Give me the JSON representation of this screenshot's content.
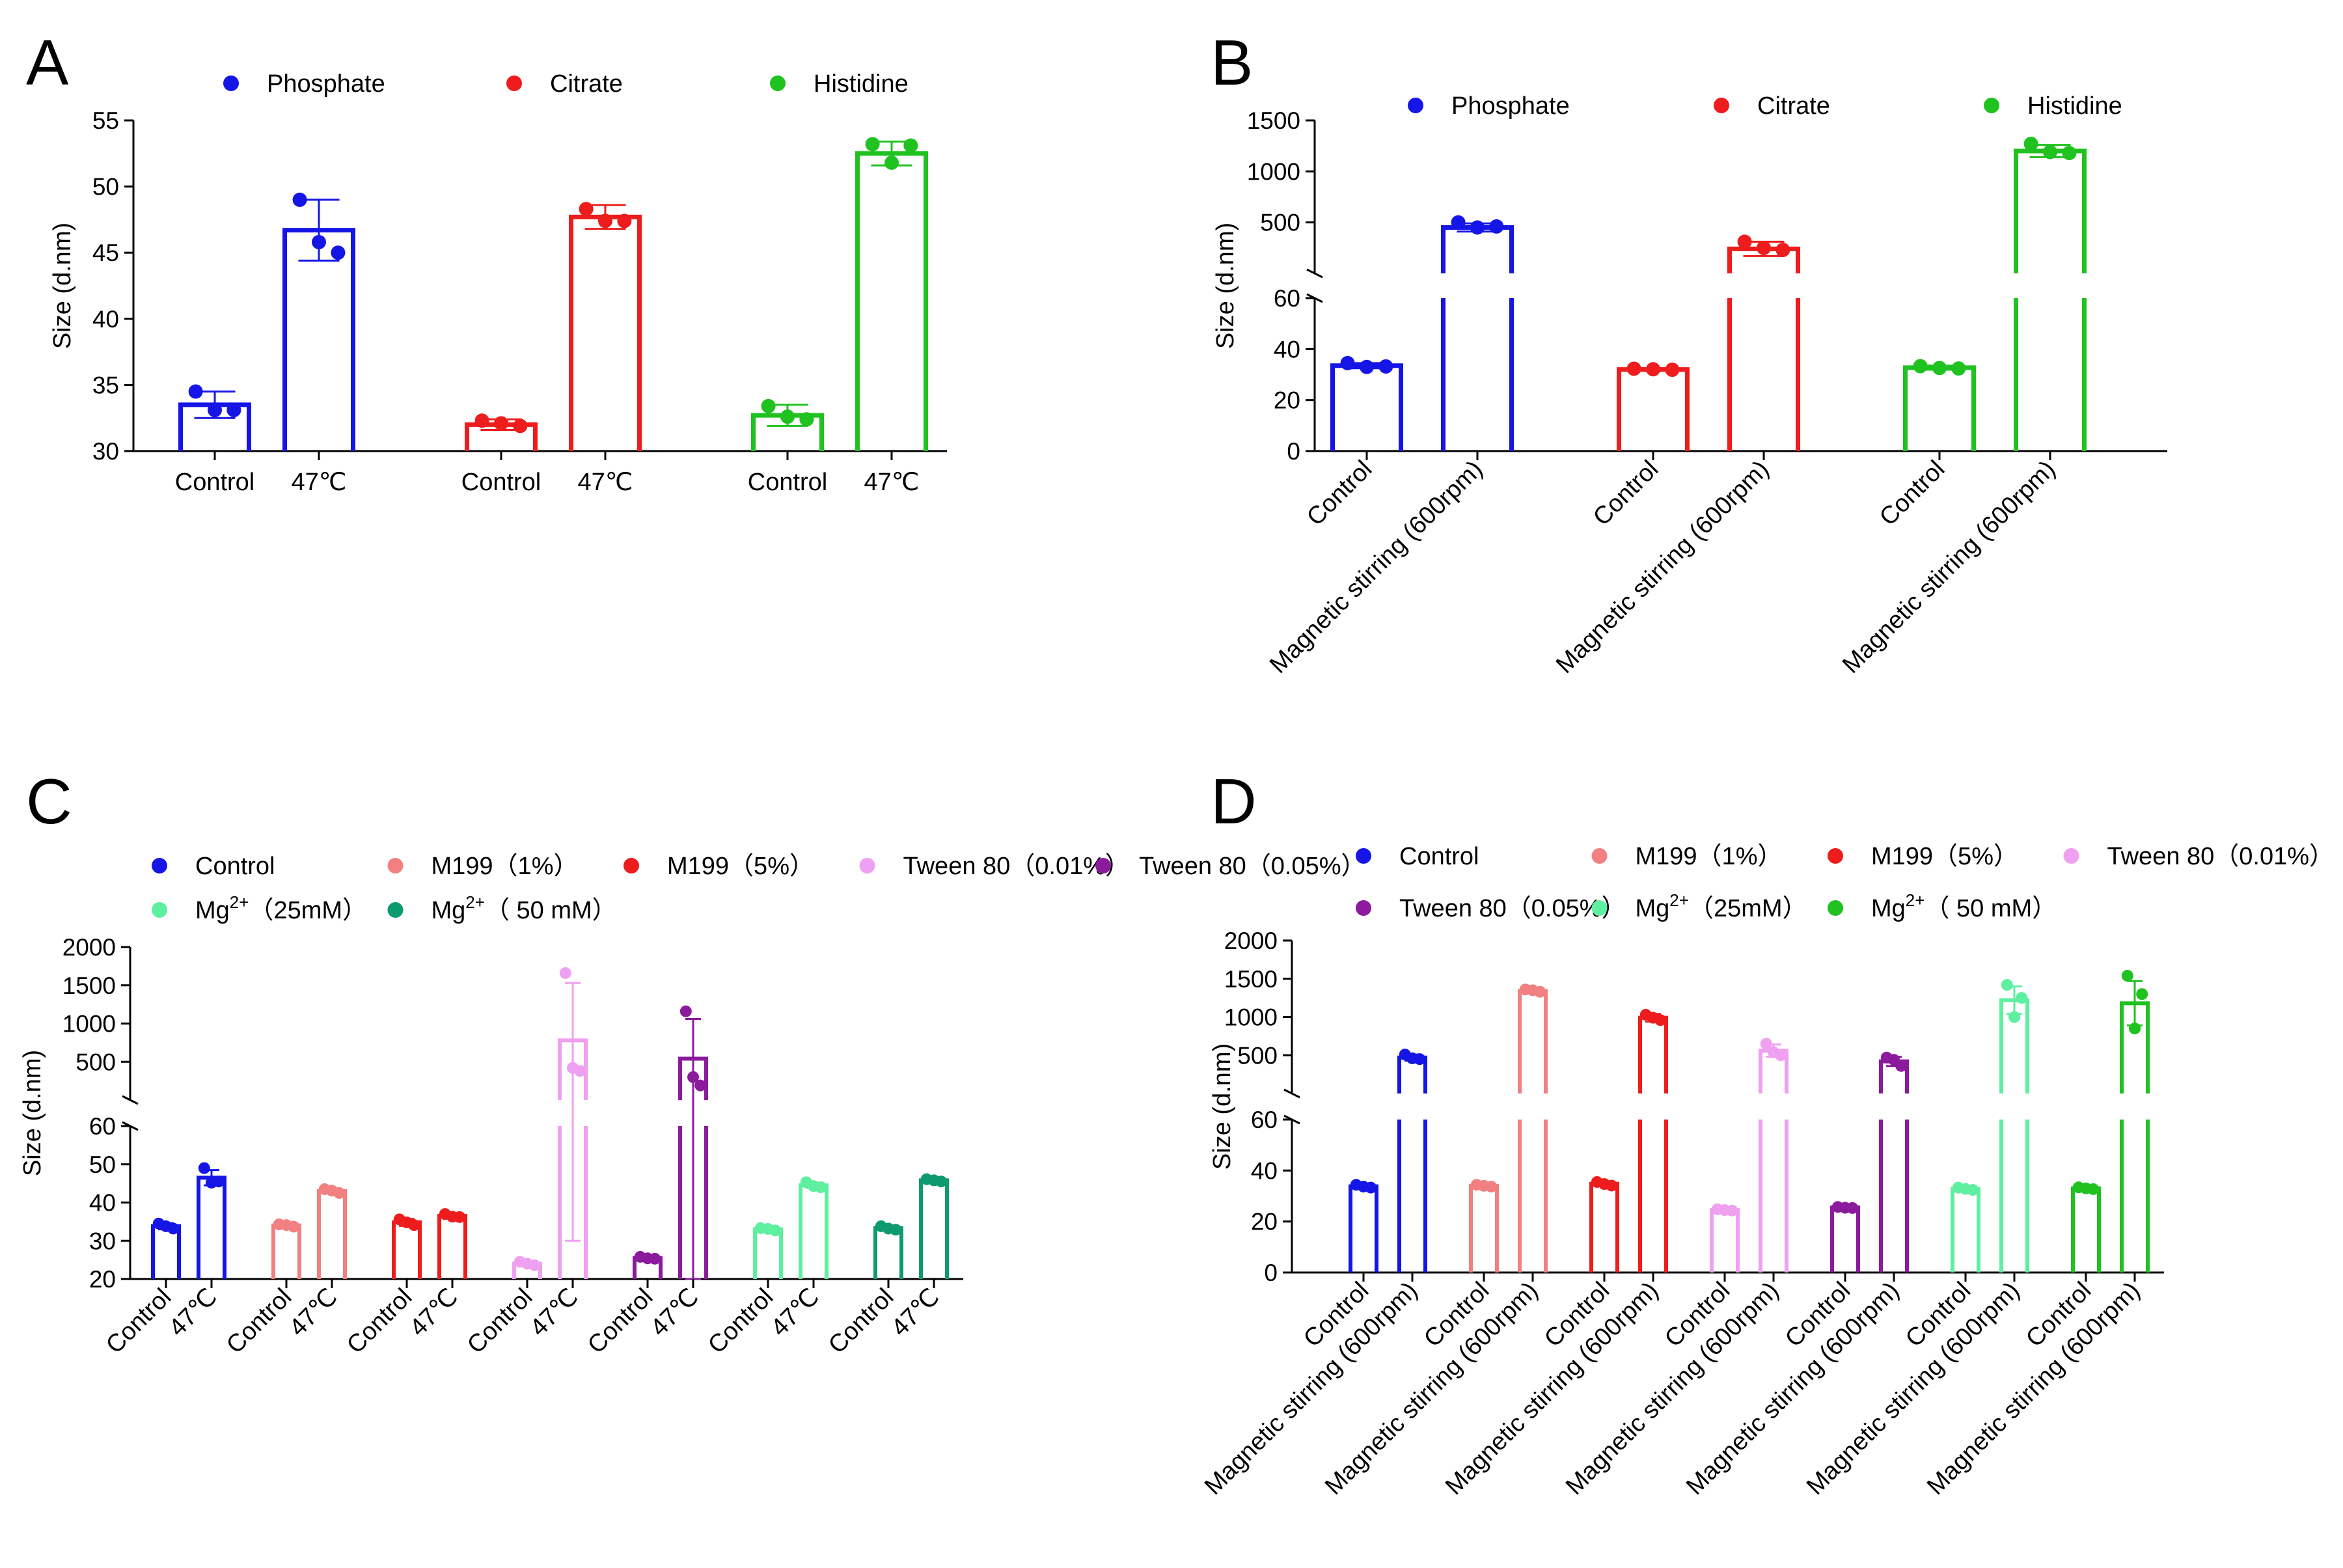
{
  "chart_data": [
    {
      "panel": "A",
      "type": "bar",
      "ylabel": "Size (d.nm)",
      "ylim": [
        30,
        55
      ],
      "yticks": [
        "30",
        "35",
        "40",
        "45",
        "50",
        "55"
      ],
      "legend": [
        {
          "name": "Phosphate",
          "color": "#1515e6"
        },
        {
          "name": "Citrate",
          "color": "#ee1c1c"
        },
        {
          "name": "Histidine",
          "color": "#1fc21f"
        }
      ],
      "categories": [
        "Control",
        "47℃",
        "Control",
        "47℃",
        "Control",
        "47℃"
      ],
      "series_colors": [
        "#1515e6",
        "#1515e6",
        "#ee1c1c",
        "#ee1c1c",
        "#1fc21f",
        "#1fc21f"
      ],
      "values": [
        33.5,
        46.7,
        32.0,
        47.7,
        32.7,
        52.5
      ],
      "errors": [
        1.0,
        2.3,
        0.4,
        0.9,
        0.8,
        0.9
      ],
      "points": [
        [
          34.5,
          33.1,
          33.1
        ],
        [
          49.0,
          45.0,
          45.8
        ],
        [
          32.3,
          31.9,
          32.1
        ],
        [
          48.3,
          47.4,
          47.4
        ],
        [
          33.4,
          32.4,
          32.6
        ],
        [
          53.2,
          53.1,
          51.8
        ]
      ]
    },
    {
      "panel": "B",
      "type": "bar",
      "ylabel": "Size (d.nm)",
      "broken_axis": true,
      "lower_ylim": [
        0,
        60
      ],
      "lower_yticks": [
        "0",
        "20",
        "40",
        "60"
      ],
      "upper_ylim": [
        0,
        1500
      ],
      "upper_yticks": [
        "500",
        "1000",
        "1500"
      ],
      "legend": [
        {
          "name": "Phosphate",
          "color": "#1515e6"
        },
        {
          "name": "Citrate",
          "color": "#ee1c1c"
        },
        {
          "name": "Histidine",
          "color": "#1fc21f"
        }
      ],
      "categories": [
        "Control",
        "Magnetic stirring (600rpm)",
        "Control",
        "Magnetic stirring (600rpm)",
        "Control",
        "Magnetic stirring (600rpm)"
      ],
      "series_colors": [
        "#1515e6",
        "#1515e6",
        "#ee1c1c",
        "#ee1c1c",
        "#1fc21f",
        "#1fc21f"
      ],
      "values": [
        33.5,
        450,
        32.0,
        240,
        32.7,
        1200
      ],
      "errors": [
        1.0,
        40,
        0.5,
        70,
        0.8,
        60
      ],
      "points": [
        [
          34.5,
          33.2,
          33.0
        ],
        [
          500,
          460,
          450
        ],
        [
          32.3,
          31.9,
          32.1
        ],
        [
          310,
          230,
          250
        ],
        [
          33.3,
          32.4,
          32.6
        ],
        [
          1270,
          1180,
          1190
        ]
      ]
    },
    {
      "panel": "C",
      "type": "bar",
      "ylabel": "Size (d.nm)",
      "broken_axis": true,
      "lower_ylim": [
        20,
        60
      ],
      "lower_yticks": [
        "20",
        "30",
        "40",
        "50",
        "60"
      ],
      "upper_ylim": [
        0,
        2000
      ],
      "upper_yticks": [
        "500",
        "1000",
        "1500",
        "2000"
      ],
      "legend": [
        {
          "name": "Control",
          "color": "#1515e6"
        },
        {
          "name": "M199（1%）",
          "color": "#f28080"
        },
        {
          "name": "M199（5%）",
          "color": "#ee1c1c"
        },
        {
          "name": "Tween 80（0.01%）",
          "color": "#f0a0f0"
        },
        {
          "name": "Tween 80（0.05%）",
          "color": "#8b1a9c"
        },
        {
          "name": "Mg",
          "sup": "2+",
          "rest": "（25mM）",
          "color": "#5ef0a0"
        },
        {
          "name": "Mg",
          "sup": "2+",
          "rest": "（ 50 mM）",
          "color": "#0d9a6e"
        }
      ],
      "categories": [
        "Control",
        "47℃",
        "Control",
        "47℃",
        "Control",
        "47℃",
        "Control",
        "47℃",
        "Control",
        "47℃",
        "Control",
        "47℃",
        "Control",
        "47℃"
      ],
      "series_colors": [
        "#1515e6",
        "#1515e6",
        "#f28080",
        "#f28080",
        "#ee1c1c",
        "#ee1c1c",
        "#f0a0f0",
        "#f0a0f0",
        "#8b1a9c",
        "#8b1a9c",
        "#5ef0a0",
        "#5ef0a0",
        "#0d9a6e",
        "#0d9a6e"
      ],
      "values": [
        33.8,
        46.5,
        34.0,
        43.0,
        34.8,
        36.5,
        24.0,
        780,
        25.5,
        540,
        33.0,
        44.5,
        33.3,
        45.8
      ],
      "errors": [
        0.8,
        2.0,
        0.5,
        0.6,
        0.9,
        0.6,
        0.6,
        750,
        0.4,
        520,
        0.5,
        0.7,
        0.5,
        0.4
      ],
      "points": [
        [
          34.5,
          33.2,
          33.8
        ],
        [
          49.0,
          45.5,
          45.2
        ],
        [
          34.3,
          33.7,
          34.1
        ],
        [
          43.5,
          42.5,
          43.1
        ],
        [
          35.6,
          34.1,
          34.8
        ],
        [
          37.0,
          36.2,
          36.3
        ],
        [
          24.5,
          23.6,
          24.0
        ],
        [
          1660,
          380,
          420
        ],
        [
          25.8,
          25.3,
          25.4
        ],
        [
          1160,
          190,
          300
        ],
        [
          33.3,
          32.7,
          33.1
        ],
        [
          45.3,
          44.0,
          44.3
        ],
        [
          33.8,
          32.9,
          33.2
        ],
        [
          46.1,
          45.5,
          45.8
        ]
      ]
    },
    {
      "panel": "D",
      "type": "bar",
      "ylabel": "Size (d.nm)",
      "broken_axis": true,
      "lower_ylim": [
        0,
        60
      ],
      "lower_yticks": [
        "0",
        "20",
        "40",
        "60"
      ],
      "upper_ylim": [
        0,
        2000
      ],
      "upper_yticks": [
        "500",
        "1000",
        "1500",
        "2000"
      ],
      "legend": [
        {
          "name": "Control",
          "color": "#1515e6"
        },
        {
          "name": "M199（1%）",
          "color": "#f28080"
        },
        {
          "name": "M199（5%）",
          "color": "#ee1c1c"
        },
        {
          "name": "Tween 80（0.01%）",
          "color": "#f0a0f0"
        },
        {
          "name": "Tween 80（0.05%）",
          "color": "#8b1a9c"
        },
        {
          "name": "Mg",
          "sup": "2+",
          "rest": "（25mM）",
          "color": "#5ef0a0"
        },
        {
          "name": "Mg",
          "sup": "2+",
          "rest": "（ 50 mM）",
          "color": "#1fc21f"
        }
      ],
      "categories": [
        "Control",
        "Magnetic stirring (600rpm)",
        "Control",
        "Magnetic stirring (600rpm)",
        "Control",
        "Magnetic stirring (600rpm)",
        "Control",
        "Magnetic stirring (600rpm)",
        "Control",
        "Magnetic stirring (600rpm)",
        "Control",
        "Magnetic stirring (600rpm)",
        "Control",
        "Magnetic stirring (600rpm)"
      ],
      "series_colors": [
        "#1515e6",
        "#1515e6",
        "#f28080",
        "#f28080",
        "#ee1c1c",
        "#ee1c1c",
        "#f0a0f0",
        "#f0a0f0",
        "#8b1a9c",
        "#8b1a9c",
        "#5ef0a0",
        "#5ef0a0",
        "#1fc21f",
        "#1fc21f"
      ],
      "values": [
        33.8,
        470,
        34.0,
        1340,
        34.8,
        990,
        24.5,
        560,
        25.5,
        420,
        32.8,
        1220,
        33.0,
        1180
      ],
      "errors": [
        0.6,
        40,
        0.5,
        30,
        0.8,
        50,
        0.4,
        80,
        0.3,
        60,
        0.6,
        180,
        0.5,
        290
      ],
      "points": [
        [
          34.4,
          33.3,
          33.7
        ],
        [
          510,
          450,
          460
        ],
        [
          34.4,
          33.7,
          34.0
        ],
        [
          1360,
          1330,
          1350
        ],
        [
          35.5,
          34.1,
          34.7
        ],
        [
          1030,
          960,
          990
        ],
        [
          24.8,
          24.3,
          24.5
        ],
        [
          650,
          500,
          540
        ],
        [
          25.7,
          25.3,
          25.4
        ],
        [
          470,
          360,
          440
        ],
        [
          33.3,
          32.4,
          32.8
        ],
        [
          1420,
          1250,
          1000
        ],
        [
          33.4,
          32.7,
          33.0
        ],
        [
          1540,
          1300,
          850
        ]
      ]
    }
  ],
  "panel_labels": [
    "A",
    "B",
    "C",
    "D"
  ]
}
